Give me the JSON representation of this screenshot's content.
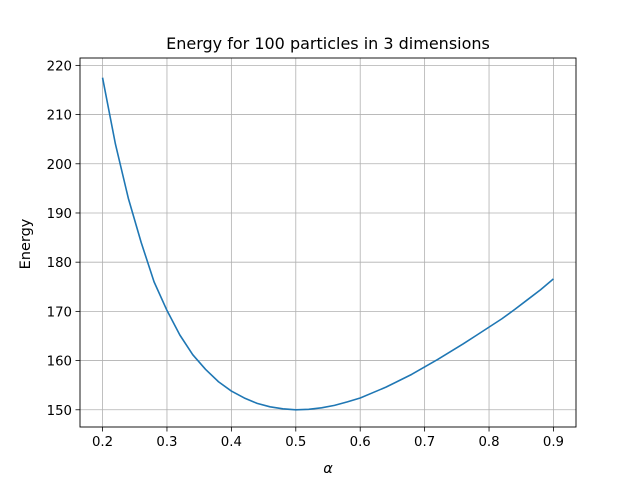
{
  "chart_data": {
    "type": "line",
    "title": "Energy for 100 particles in 3 dimensions",
    "xlabel": "α",
    "ylabel": "Energy",
    "xlim": [
      0.165,
      0.935
    ],
    "ylim": [
      146.5,
      221.5
    ],
    "xticks": [
      0.2,
      0.3,
      0.4,
      0.5,
      0.6,
      0.7,
      0.8,
      0.9
    ],
    "xtick_labels": [
      "0.2",
      "0.3",
      "0.4",
      "0.5",
      "0.6",
      "0.7",
      "0.8",
      "0.9"
    ],
    "yticks": [
      150,
      160,
      170,
      180,
      190,
      200,
      210,
      220
    ],
    "ytick_labels": [
      "150",
      "160",
      "170",
      "180",
      "190",
      "200",
      "210",
      "220"
    ],
    "grid": true,
    "colors": {
      "line": "#1f77b4",
      "grid": "#b0b0b0",
      "axes": "#000000"
    },
    "series": [
      {
        "x": [
          0.2,
          0.22,
          0.24,
          0.26,
          0.28,
          0.3,
          0.32,
          0.34,
          0.36,
          0.38,
          0.4,
          0.42,
          0.44,
          0.46,
          0.48,
          0.5,
          0.52,
          0.54,
          0.56,
          0.58,
          0.6,
          0.62,
          0.64,
          0.66,
          0.68,
          0.7,
          0.72,
          0.74,
          0.76,
          0.78,
          0.8,
          0.82,
          0.84,
          0.86,
          0.88,
          0.9
        ],
        "values": [
          217.5,
          204.0,
          193.0,
          184.0,
          176.0,
          170.2,
          165.2,
          161.2,
          158.2,
          155.7,
          153.8,
          152.4,
          151.3,
          150.6,
          150.2,
          150.0,
          150.1,
          150.4,
          150.9,
          151.6,
          152.4,
          153.5,
          154.6,
          155.9,
          157.2,
          158.7,
          160.2,
          161.8,
          163.4,
          165.1,
          166.8,
          168.5,
          170.4,
          172.4,
          174.4,
          176.6
        ]
      }
    ]
  }
}
